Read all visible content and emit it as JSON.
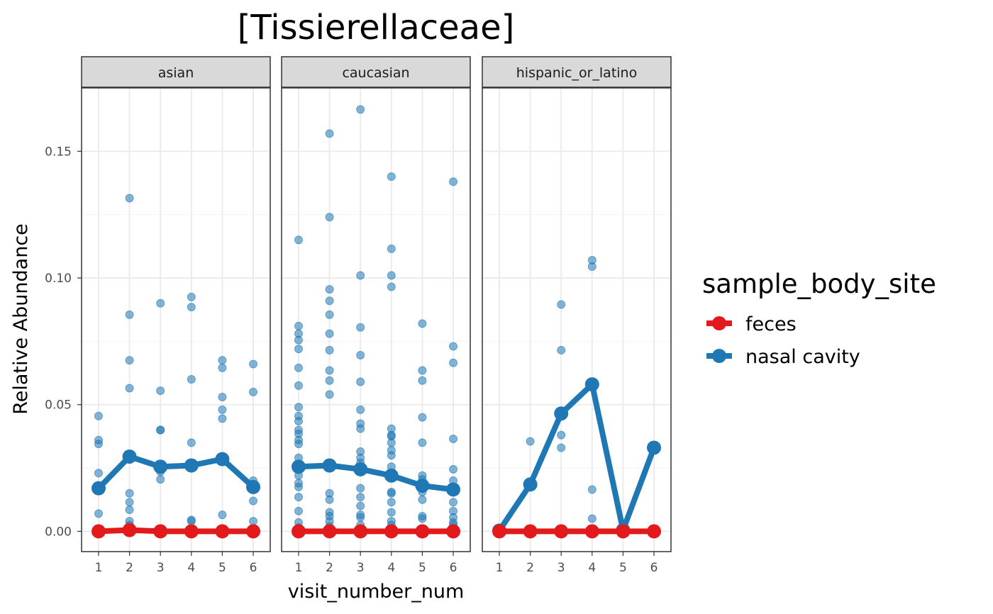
{
  "chart_data": {
    "type": "scatter",
    "title": "[Tissierellaceae]",
    "xlabel": "visit_number_num",
    "ylabel": "Relative Abundance",
    "x_ticks": [
      1,
      2,
      3,
      4,
      5,
      6
    ],
    "y_ticks": [
      "0.00",
      "0.05",
      "0.10",
      "0.15"
    ],
    "ylim": [
      -0.008,
      0.175
    ],
    "xlim": [
      0.45,
      6.55
    ],
    "grid": true,
    "legend": {
      "title": "sample_body_site",
      "position": "right",
      "entries": [
        {
          "label": "feces",
          "color": "#e31a1c"
        },
        {
          "label": "nasal cavity",
          "color": "#1f78b4"
        }
      ]
    },
    "panels": [
      {
        "strip": "asian",
        "lines": [
          {
            "series": "nasal cavity",
            "color": "#1f78b4",
            "x": [
              1,
              2,
              3,
              4,
              5,
              6
            ],
            "y": [
              0.017,
              0.0295,
              0.0255,
              0.026,
              0.0285,
              0.0175
            ]
          },
          {
            "series": "feces",
            "color": "#e31a1c",
            "x": [
              1,
              2,
              3,
              4,
              5,
              6
            ],
            "y": [
              0.0,
              0.0005,
              0.0,
              0.0,
              0.0,
              0.0
            ]
          }
        ],
        "points": [
          [
            1,
            0.0455
          ],
          [
            1,
            0.036
          ],
          [
            1,
            0.0345
          ],
          [
            1,
            0.023
          ],
          [
            1,
            0.007
          ],
          [
            1,
            0.0
          ],
          [
            2,
            0.1315
          ],
          [
            2,
            0.0855
          ],
          [
            2,
            0.0675
          ],
          [
            2,
            0.0565
          ],
          [
            2,
            0.015
          ],
          [
            2,
            0.0115
          ],
          [
            2,
            0.0085
          ],
          [
            2,
            0.004
          ],
          [
            2,
            0.0025
          ],
          [
            2,
            0.0
          ],
          [
            3,
            0.09
          ],
          [
            3,
            0.0555
          ],
          [
            3,
            0.04
          ],
          [
            3,
            0.04
          ],
          [
            3,
            0.026
          ],
          [
            3,
            0.0235
          ],
          [
            3,
            0.0205
          ],
          [
            3,
            0.0
          ],
          [
            4,
            0.0925
          ],
          [
            4,
            0.0885
          ],
          [
            4,
            0.06
          ],
          [
            4,
            0.035
          ],
          [
            4,
            0.0045
          ],
          [
            4,
            0.004
          ],
          [
            4,
            0.0
          ],
          [
            5,
            0.0675
          ],
          [
            5,
            0.0645
          ],
          [
            5,
            0.053
          ],
          [
            5,
            0.048
          ],
          [
            5,
            0.0445
          ],
          [
            5,
            0.0065
          ],
          [
            5,
            0.0
          ],
          [
            6,
            0.066
          ],
          [
            6,
            0.055
          ],
          [
            6,
            0.02
          ],
          [
            6,
            0.012
          ],
          [
            6,
            0.004
          ],
          [
            6,
            0.0
          ]
        ]
      },
      {
        "strip": "caucasian",
        "lines": [
          {
            "series": "nasal cavity",
            "color": "#1f78b4",
            "x": [
              1,
              2,
              3,
              4,
              5,
              6
            ],
            "y": [
              0.0255,
              0.026,
              0.0245,
              0.022,
              0.018,
              0.0165
            ]
          },
          {
            "series": "feces",
            "color": "#e31a1c",
            "x": [
              1,
              2,
              3,
              4,
              5,
              6
            ],
            "y": [
              0.0,
              0.0,
              0.0,
              0.0,
              0.0,
              0.0
            ]
          }
        ],
        "points": [
          [
            1,
            0.115
          ],
          [
            1,
            0.081
          ],
          [
            1,
            0.078
          ],
          [
            1,
            0.0755
          ],
          [
            1,
            0.072
          ],
          [
            1,
            0.0645
          ],
          [
            1,
            0.0575
          ],
          [
            1,
            0.049
          ],
          [
            1,
            0.0455
          ],
          [
            1,
            0.0435
          ],
          [
            1,
            0.04
          ],
          [
            1,
            0.0385
          ],
          [
            1,
            0.036
          ],
          [
            1,
            0.0345
          ],
          [
            1,
            0.029
          ],
          [
            1,
            0.026
          ],
          [
            1,
            0.022
          ],
          [
            1,
            0.019
          ],
          [
            1,
            0.0175
          ],
          [
            1,
            0.0135
          ],
          [
            1,
            0.008
          ],
          [
            1,
            0.0035
          ],
          [
            1,
            0.0015
          ],
          [
            1,
            0.0
          ],
          [
            2,
            0.157
          ],
          [
            2,
            0.124
          ],
          [
            2,
            0.0955
          ],
          [
            2,
            0.091
          ],
          [
            2,
            0.0855
          ],
          [
            2,
            0.078
          ],
          [
            2,
            0.0715
          ],
          [
            2,
            0.0635
          ],
          [
            2,
            0.0595
          ],
          [
            2,
            0.054
          ],
          [
            2,
            0.025
          ],
          [
            2,
            0.015
          ],
          [
            2,
            0.0125
          ],
          [
            2,
            0.0075
          ],
          [
            2,
            0.006
          ],
          [
            2,
            0.004
          ],
          [
            2,
            0.002
          ],
          [
            2,
            0.0
          ],
          [
            3,
            0.1665
          ],
          [
            3,
            0.101
          ],
          [
            3,
            0.0805
          ],
          [
            3,
            0.0695
          ],
          [
            3,
            0.059
          ],
          [
            3,
            0.048
          ],
          [
            3,
            0.0425
          ],
          [
            3,
            0.0405
          ],
          [
            3,
            0.0315
          ],
          [
            3,
            0.029
          ],
          [
            3,
            0.027
          ],
          [
            3,
            0.024
          ],
          [
            3,
            0.017
          ],
          [
            3,
            0.0135
          ],
          [
            3,
            0.01
          ],
          [
            3,
            0.0065
          ],
          [
            3,
            0.0055
          ],
          [
            3,
            0.0025
          ],
          [
            3,
            0.0
          ],
          [
            4,
            0.14
          ],
          [
            4,
            0.1115
          ],
          [
            4,
            0.101
          ],
          [
            4,
            0.0965
          ],
          [
            4,
            0.0405
          ],
          [
            4,
            0.038
          ],
          [
            4,
            0.0375
          ],
          [
            4,
            0.035
          ],
          [
            4,
            0.032
          ],
          [
            4,
            0.03
          ],
          [
            4,
            0.0255
          ],
          [
            4,
            0.0225
          ],
          [
            4,
            0.0155
          ],
          [
            4,
            0.015
          ],
          [
            4,
            0.0115
          ],
          [
            4,
            0.0075
          ],
          [
            4,
            0.004
          ],
          [
            4,
            0.0025
          ],
          [
            4,
            0.0
          ],
          [
            5,
            0.082
          ],
          [
            5,
            0.0635
          ],
          [
            5,
            0.0595
          ],
          [
            5,
            0.045
          ],
          [
            5,
            0.035
          ],
          [
            5,
            0.022
          ],
          [
            5,
            0.0205
          ],
          [
            5,
            0.0185
          ],
          [
            5,
            0.0155
          ],
          [
            5,
            0.0125
          ],
          [
            5,
            0.006
          ],
          [
            5,
            0.005
          ],
          [
            5,
            0.0
          ],
          [
            6,
            0.138
          ],
          [
            6,
            0.073
          ],
          [
            6,
            0.0665
          ],
          [
            6,
            0.0365
          ],
          [
            6,
            0.0245
          ],
          [
            6,
            0.02
          ],
          [
            6,
            0.0155
          ],
          [
            6,
            0.0115
          ],
          [
            6,
            0.008
          ],
          [
            6,
            0.0055
          ],
          [
            6,
            0.0035
          ],
          [
            6,
            0.0025
          ],
          [
            6,
            0.0
          ]
        ]
      },
      {
        "strip": "hispanic_or_latino",
        "lines": [
          {
            "series": "nasal cavity",
            "color": "#1f78b4",
            "x": [
              1,
              2,
              3,
              4,
              5,
              6
            ],
            "y": [
              0.0003,
              0.0185,
              0.0465,
              0.058,
              0.0005,
              0.033
            ]
          },
          {
            "series": "feces",
            "color": "#e31a1c",
            "x": [
              1,
              2,
              3,
              4,
              5,
              6
            ],
            "y": [
              0.0,
              0.0,
              0.0,
              0.0,
              0.0,
              0.0
            ]
          }
        ],
        "points": [
          [
            1,
            0.0
          ],
          [
            2,
            0.0355
          ],
          [
            2,
            0.0
          ],
          [
            3,
            0.0895
          ],
          [
            3,
            0.0715
          ],
          [
            3,
            0.038
          ],
          [
            3,
            0.033
          ],
          [
            3,
            0.0
          ],
          [
            4,
            0.107
          ],
          [
            4,
            0.1045
          ],
          [
            4,
            0.0165
          ],
          [
            4,
            0.005
          ],
          [
            4,
            0.0
          ],
          [
            5,
            0.0
          ],
          [
            6,
            0.0
          ]
        ]
      }
    ]
  }
}
